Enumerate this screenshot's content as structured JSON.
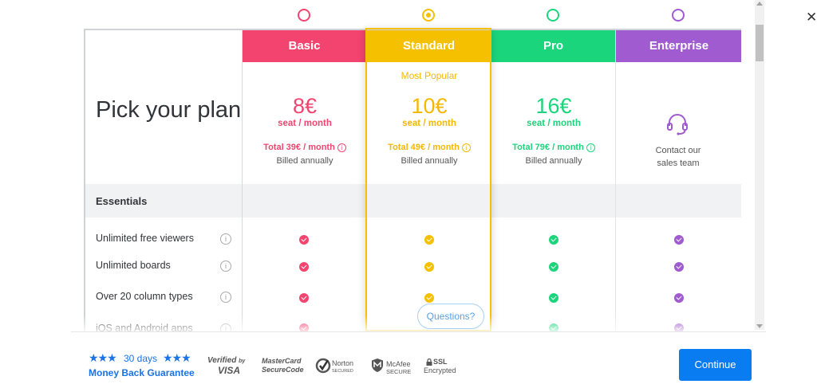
{
  "close": {
    "label": "✕"
  },
  "left": {
    "title": "Pick your plan",
    "section": "Essentials"
  },
  "features": [
    {
      "label": "Unlimited free viewers",
      "info": "i"
    },
    {
      "label": "Unlimited boards",
      "info": "i"
    },
    {
      "label": "Over 20 column types",
      "info": "i"
    },
    {
      "label": "iOS and Android apps",
      "info": "i"
    }
  ],
  "plans": {
    "basic": {
      "name": "Basic",
      "price": "8€",
      "per": "seat / month",
      "total": "Total 39€ / month",
      "billed": "Billed annually",
      "color": "#f2446f"
    },
    "standard": {
      "name": "Standard",
      "popular": "Most Popular",
      "price": "10€",
      "per": "seat / month",
      "total": "Total 49€ / month",
      "billed": "Billed annually",
      "color": "#f5c000"
    },
    "pro": {
      "name": "Pro",
      "price": "16€",
      "per": "seat / month",
      "total": "Total 79€ / month",
      "billed": "Billed annually",
      "color": "#1bd57c"
    },
    "enterprise": {
      "name": "Enterprise",
      "contact1": "Contact our",
      "contact2": "sales team",
      "color": "#a05bd1"
    }
  },
  "info_glyph": "i",
  "questions": "Questions?",
  "footer": {
    "stars": "★★★",
    "days": "30 days",
    "guarantee": "Money Back Guarantee",
    "badges": {
      "verified1": "Verified",
      "verified2": "by",
      "verified3": "VISA",
      "mc1": "MasterCard",
      "mc2": "SecureCode",
      "norton1": "Norton",
      "norton2": "SECURED",
      "mcafee1": "McAfee",
      "mcafee2": "SECURE",
      "ssl1": "SSL",
      "ssl2": "Encrypted"
    },
    "continue": "Continue"
  }
}
